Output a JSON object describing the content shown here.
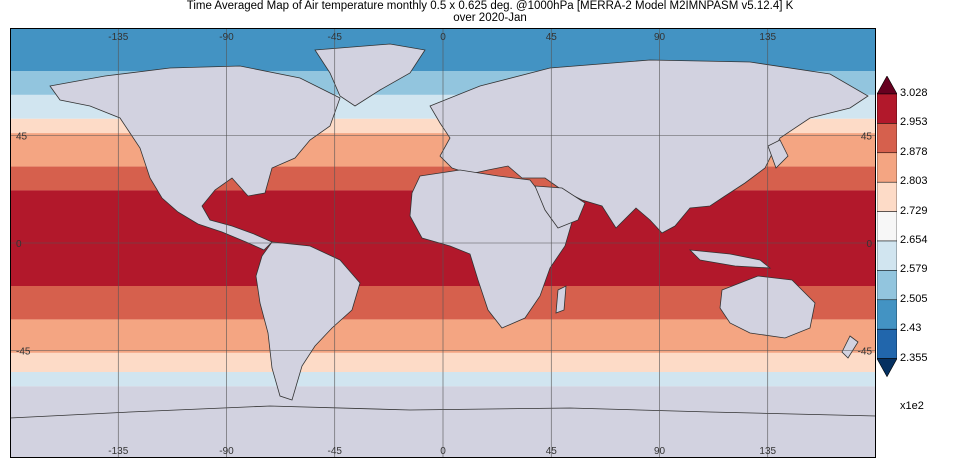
{
  "title_line1": "Time Averaged Map of Air temperature monthly 0.5 x 0.625 deg. @1000hPa [MERRA-2 Model M2IMNPASM v5.12.4] K",
  "title_line2": "over 2020-Jan",
  "lon_labels": [
    "-135",
    "-90",
    "-45",
    "0",
    "45",
    "90",
    "135"
  ],
  "lat_labels": [
    "45",
    "0",
    "-45"
  ],
  "colorbar": {
    "levels": [
      "3.028",
      "2.953",
      "2.878",
      "2.803",
      "2.729",
      "2.654",
      "2.579",
      "2.505",
      "2.43",
      "2.355"
    ],
    "colors": [
      "#b2182b",
      "#d6604d",
      "#f4a582",
      "#fddbc7",
      "#f7f7f7",
      "#d1e5f0",
      "#92c5de",
      "#4393c3",
      "#2166ac"
    ],
    "over_color": "#67001f",
    "under_color": "#053061",
    "scale_label": "x1e2"
  },
  "land_color": "#d2d2e0",
  "ocean_bands": [
    {
      "lat_from": 90,
      "lat_to": 72,
      "color": "#4393c3"
    },
    {
      "lat_from": 72,
      "lat_to": 62,
      "color": "#92c5de"
    },
    {
      "lat_from": 62,
      "lat_to": 52,
      "color": "#d1e5f0"
    },
    {
      "lat_from": 52,
      "lat_to": 46,
      "color": "#fddbc7"
    },
    {
      "lat_from": 46,
      "lat_to": 32,
      "color": "#f4a582"
    },
    {
      "lat_from": 32,
      "lat_to": 22,
      "color": "#d6604d"
    },
    {
      "lat_from": 22,
      "lat_to": -18,
      "color": "#b2182b"
    },
    {
      "lat_from": -18,
      "lat_to": -32,
      "color": "#d6604d"
    },
    {
      "lat_from": -32,
      "lat_to": -46,
      "color": "#f4a582"
    },
    {
      "lat_from": -46,
      "lat_to": -54,
      "color": "#fddbc7"
    },
    {
      "lat_from": -54,
      "lat_to": -60,
      "color": "#d1e5f0"
    },
    {
      "lat_from": -60,
      "lat_to": -90,
      "color": "#d2d2e0"
    }
  ]
}
